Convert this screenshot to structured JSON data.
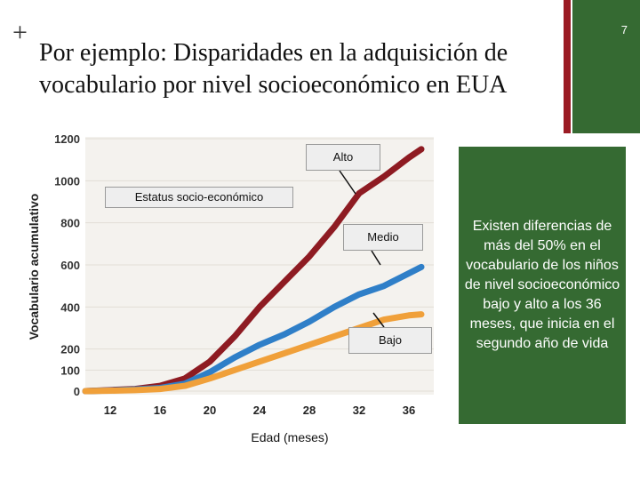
{
  "slide": {
    "plus": "+",
    "title": "Por ejemplo: Disparidades en la adquisición de vocabulario por nivel socioeconómico en EUA",
    "number": "7",
    "side_text": "Existen diferencias de más del 50% en el vocabulario de los niños de nivel socioeconómico bajo y alto a los 36 meses, que inicia en el segundo año de vida",
    "accent_red": "#9b1b24",
    "accent_green": "#356a32"
  },
  "chart_data": {
    "type": "line",
    "xlabel": "Edad (meses)",
    "ylabel": "Vocabulario acumulativo",
    "legend_title": "Estatus socio-económico",
    "x_ticks": [
      12,
      16,
      20,
      24,
      28,
      32,
      36
    ],
    "y_ticks": [
      0,
      100,
      200,
      400,
      600,
      800,
      1000,
      1200
    ],
    "xlim": [
      10,
      38
    ],
    "ylim": [
      0,
      1200
    ],
    "series": [
      {
        "name": "Alto",
        "color": "#8e1b22",
        "x": [
          10,
          12,
          14,
          16,
          18,
          20,
          22,
          24,
          26,
          28,
          30,
          32,
          34,
          36,
          37
        ],
        "y": [
          0,
          5,
          10,
          25,
          60,
          140,
          260,
          400,
          520,
          640,
          780,
          940,
          1020,
          1110,
          1150
        ]
      },
      {
        "name": "Medio",
        "color": "#2f7fc8",
        "x": [
          10,
          12,
          14,
          16,
          18,
          20,
          22,
          24,
          26,
          28,
          30,
          32,
          34,
          36,
          37
        ],
        "y": [
          0,
          3,
          8,
          15,
          35,
          90,
          160,
          220,
          270,
          330,
          400,
          460,
          500,
          560,
          590
        ]
      },
      {
        "name": "Bajo",
        "color": "#f0a03a",
        "x": [
          10,
          12,
          14,
          16,
          18,
          20,
          22,
          24,
          26,
          28,
          30,
          32,
          34,
          36,
          37
        ],
        "y": [
          0,
          2,
          5,
          10,
          25,
          60,
          100,
          140,
          180,
          220,
          260,
          300,
          340,
          360,
          365
        ]
      }
    ]
  }
}
